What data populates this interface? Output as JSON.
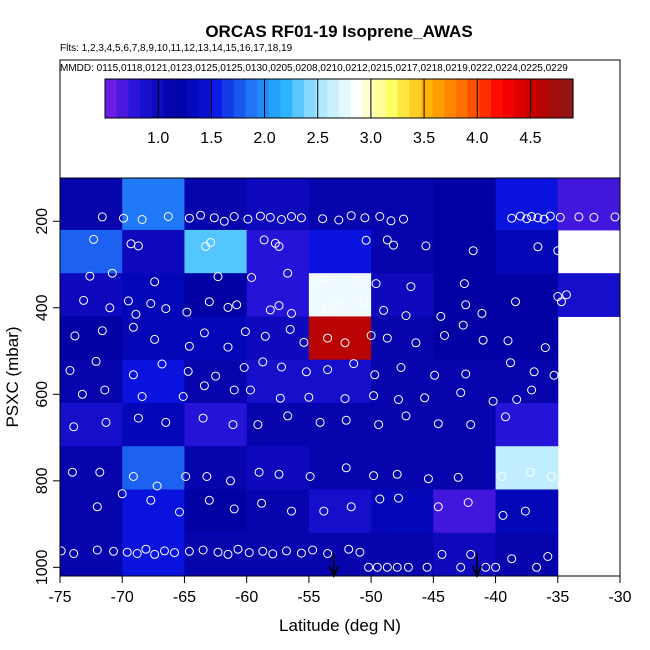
{
  "chart_data": {
    "type": "heatmap",
    "title": "ORCAS RF01-19 Isoprene_AWAS",
    "flights_line": "Flts: 1,2,3,4,5,6,7,8,9,10,11,12,13,14,15,16,17,18,19",
    "mmdd_line": "MMDD: 0115,0118,0121,0123,0125,0125,0130,0205,0208,0210,0212,0215,0217,0218,0219,0222,0224,0225,0229",
    "xlabel": "Latitude (deg N)",
    "ylabel": "PSXC (mbar)",
    "xlim": [
      -75,
      -30
    ],
    "ylim": [
      1000,
      100
    ],
    "x_ticks": [
      -75,
      -70,
      -65,
      -60,
      -55,
      -50,
      -45,
      -40,
      -35,
      -30
    ],
    "x_tick_labels": [
      "-75",
      "-70",
      "-65",
      "-60",
      "-55",
      "-50",
      "-45",
      "-40",
      "-35",
      "-30"
    ],
    "y_ticks": [
      200,
      400,
      600,
      800,
      1000
    ],
    "y_tick_labels": [
      "200",
      "400",
      "600",
      "800",
      "1000"
    ],
    "colorbar": {
      "range": [
        0.5,
        4.9
      ],
      "ticks": [
        1.0,
        1.5,
        2.0,
        2.5,
        3.0,
        3.5,
        4.0,
        4.5
      ],
      "tick_labels": [
        "1.0",
        "1.5",
        "2.0",
        "2.5",
        "3.0",
        "3.5",
        "4.0",
        "4.5"
      ],
      "colors": [
        "#7a1fe6",
        "#1a12d6",
        "#0000a0",
        "#0a14e0",
        "#1f70f5",
        "#28b4ff",
        "#b0eaff",
        "#ffffff",
        "#ffff60",
        "#ffb000",
        "#ff6a00",
        "#ff0000",
        "#c00000",
        "#8a1a1a"
      ]
    },
    "grid": {
      "x_edges": [
        -75,
        -70,
        -65,
        -60,
        -55,
        -50,
        -45,
        -40,
        -35,
        -30
      ],
      "y_edges": [
        100,
        220,
        320,
        420,
        520,
        620,
        720,
        820,
        920,
        1020
      ],
      "values": [
        [
          1.1,
          1.9,
          1.1,
          1.0,
          1.1,
          1.1,
          1.2,
          1.5,
          0.7
        ],
        [
          1.8,
          1.0,
          2.3,
          0.8,
          1.5,
          1.1,
          1.2,
          1.3,
          null
        ],
        [
          1.0,
          1.3,
          1.2,
          0.8,
          2.8,
          1.0,
          1.2,
          1.2,
          0.9
        ],
        [
          1.2,
          1.3,
          1.3,
          1.0,
          4.6,
          1.1,
          1.2,
          1.2,
          null
        ],
        [
          1.1,
          1.5,
          1.1,
          0.9,
          0.9,
          1.1,
          1.1,
          1.1,
          null
        ],
        [
          0.9,
          1.3,
          0.8,
          1.1,
          1.1,
          1.1,
          1.1,
          0.8,
          null
        ],
        [
          1.1,
          1.8,
          1.1,
          1.0,
          1.1,
          1.1,
          1.1,
          2.6,
          null
        ],
        [
          1.1,
          1.5,
          1.2,
          1.1,
          0.9,
          1.3,
          0.7,
          1.3,
          null
        ],
        [
          1.1,
          1.5,
          1.1,
          1.1,
          1.1,
          1.1,
          1.0,
          1.1,
          null
        ]
      ]
    },
    "points": [
      [
        -71.6,
        190
      ],
      [
        -69.9,
        193
      ],
      [
        -68.4,
        196
      ],
      [
        -66.3,
        189
      ],
      [
        -64.6,
        193
      ],
      [
        -63.7,
        186
      ],
      [
        -62.6,
        192
      ],
      [
        -61.8,
        200
      ],
      [
        -61.0,
        189
      ],
      [
        -59.9,
        195
      ],
      [
        -58.9,
        188
      ],
      [
        -58.1,
        191
      ],
      [
        -57.2,
        196
      ],
      [
        -56.4,
        189
      ],
      [
        -55.6,
        192
      ],
      [
        -53.9,
        194
      ],
      [
        -52.6,
        197
      ],
      [
        -51.6,
        187
      ],
      [
        -50.5,
        192
      ],
      [
        -49.3,
        189
      ],
      [
        -48.4,
        199
      ],
      [
        -47.4,
        195
      ],
      [
        -38.7,
        193
      ],
      [
        -38.0,
        188
      ],
      [
        -37.5,
        194
      ],
      [
        -37.1,
        189
      ],
      [
        -36.6,
        192
      ],
      [
        -36.1,
        195
      ],
      [
        -35.6,
        188
      ],
      [
        -34.8,
        191
      ],
      [
        -33.3,
        190
      ],
      [
        -32.1,
        191
      ],
      [
        -30.4,
        190
      ],
      [
        -72.3,
        242
      ],
      [
        -69.3,
        252
      ],
      [
        -68.7,
        257
      ],
      [
        -63.3,
        258
      ],
      [
        -62.9,
        249
      ],
      [
        -58.6,
        243
      ],
      [
        -57.7,
        251
      ],
      [
        -57.4,
        258
      ],
      [
        -50.4,
        244
      ],
      [
        -48.7,
        243
      ],
      [
        -48.2,
        255
      ],
      [
        -45.6,
        257
      ],
      [
        -41.8,
        268
      ],
      [
        -36.6,
        259
      ],
      [
        -35.0,
        268
      ],
      [
        -72.6,
        327
      ],
      [
        -70.8,
        320
      ],
      [
        -67.4,
        340
      ],
      [
        -62.3,
        328
      ],
      [
        -59.6,
        330
      ],
      [
        -56.7,
        320
      ],
      [
        -53.8,
        334
      ],
      [
        -51.1,
        338
      ],
      [
        -49.6,
        344
      ],
      [
        -46.8,
        351
      ],
      [
        -42.5,
        344
      ],
      [
        -35.0,
        374
      ],
      [
        -34.3,
        370
      ],
      [
        -73.1,
        383
      ],
      [
        -71.0,
        400
      ],
      [
        -69.5,
        384
      ],
      [
        -68.9,
        415
      ],
      [
        -67.7,
        390
      ],
      [
        -66.5,
        402
      ],
      [
        -64.8,
        410
      ],
      [
        -63.0,
        386
      ],
      [
        -61.5,
        399
      ],
      [
        -60.8,
        393
      ],
      [
        -58.1,
        405
      ],
      [
        -57.4,
        395
      ],
      [
        -56.4,
        413
      ],
      [
        -53.5,
        402
      ],
      [
        -52.6,
        393
      ],
      [
        -50.6,
        384
      ],
      [
        -49.0,
        406
      ],
      [
        -47.2,
        418
      ],
      [
        -44.4,
        420
      ],
      [
        -42.4,
        393
      ],
      [
        -41.1,
        413
      ],
      [
        -38.4,
        386
      ],
      [
        -34.7,
        386
      ],
      [
        -73.8,
        465
      ],
      [
        -71.6,
        453
      ],
      [
        -69.1,
        445
      ],
      [
        -67.4,
        473
      ],
      [
        -64.6,
        489
      ],
      [
        -63.4,
        458
      ],
      [
        -61.5,
        491
      ],
      [
        -60.1,
        455
      ],
      [
        -58.5,
        466
      ],
      [
        -56.5,
        450
      ],
      [
        -55.4,
        480
      ],
      [
        -53.5,
        470
      ],
      [
        -52.1,
        481
      ],
      [
        -50.0,
        464
      ],
      [
        -48.7,
        470
      ],
      [
        -46.4,
        481
      ],
      [
        -44.1,
        464
      ],
      [
        -42.6,
        440
      ],
      [
        -41.0,
        475
      ],
      [
        -39.0,
        476
      ],
      [
        -36.0,
        492
      ],
      [
        -74.2,
        545
      ],
      [
        -72.1,
        524
      ],
      [
        -69.1,
        555
      ],
      [
        -66.8,
        530
      ],
      [
        -64.7,
        547
      ],
      [
        -62.5,
        558
      ],
      [
        -60.2,
        538
      ],
      [
        -58.7,
        525
      ],
      [
        -57.2,
        537
      ],
      [
        -55.2,
        548
      ],
      [
        -53.5,
        543
      ],
      [
        -51.4,
        529
      ],
      [
        -49.7,
        555
      ],
      [
        -47.6,
        538
      ],
      [
        -44.9,
        556
      ],
      [
        -42.4,
        553
      ],
      [
        -38.8,
        527
      ],
      [
        -36.9,
        548
      ],
      [
        -35.3,
        556
      ],
      [
        -73.2,
        600
      ],
      [
        -71.4,
        590
      ],
      [
        -68.4,
        605
      ],
      [
        -65.1,
        605
      ],
      [
        -63.4,
        580
      ],
      [
        -61.0,
        590
      ],
      [
        -59.7,
        590
      ],
      [
        -57.3,
        609
      ],
      [
        -55.0,
        607
      ],
      [
        -52.1,
        610
      ],
      [
        -49.8,
        603
      ],
      [
        -47.8,
        612
      ],
      [
        -45.7,
        608
      ],
      [
        -42.8,
        596
      ],
      [
        -40.2,
        616
      ],
      [
        -38.3,
        612
      ],
      [
        -37.1,
        590
      ],
      [
        -73.9,
        675
      ],
      [
        -71.3,
        665
      ],
      [
        -68.7,
        655
      ],
      [
        -66.5,
        665
      ],
      [
        -63.5,
        655
      ],
      [
        -61.1,
        670
      ],
      [
        -59.1,
        670
      ],
      [
        -56.7,
        650
      ],
      [
        -54.1,
        665
      ],
      [
        -52.0,
        660
      ],
      [
        -49.4,
        670
      ],
      [
        -47.2,
        650
      ],
      [
        -44.6,
        668
      ],
      [
        -42.0,
        670
      ],
      [
        -39.2,
        652
      ],
      [
        -74.0,
        780
      ],
      [
        -71.8,
        780
      ],
      [
        -69.1,
        790
      ],
      [
        -67.2,
        812
      ],
      [
        -64.9,
        790
      ],
      [
        -63.2,
        790
      ],
      [
        -61.3,
        800
      ],
      [
        -59.0,
        780
      ],
      [
        -57.4,
        785
      ],
      [
        -54.9,
        790
      ],
      [
        -52.0,
        770
      ],
      [
        -49.8,
        788
      ],
      [
        -47.9,
        785
      ],
      [
        -45.4,
        795
      ],
      [
        -43.0,
        792
      ],
      [
        -39.5,
        790
      ],
      [
        -37.2,
        780
      ],
      [
        -35.5,
        790
      ],
      [
        -72.0,
        860
      ],
      [
        -70.0,
        830
      ],
      [
        -67.7,
        845
      ],
      [
        -65.4,
        872
      ],
      [
        -63.0,
        845
      ],
      [
        -61.0,
        865
      ],
      [
        -58.8,
        852
      ],
      [
        -56.4,
        870
      ],
      [
        -53.8,
        870
      ],
      [
        -51.6,
        860
      ],
      [
        -49.3,
        842
      ],
      [
        -47.8,
        840
      ],
      [
        -44.6,
        860
      ],
      [
        -42.2,
        850
      ],
      [
        -39.4,
        880
      ],
      [
        -37.6,
        870
      ],
      [
        -74.9,
        962
      ],
      [
        -73.9,
        968
      ],
      [
        -72.0,
        960
      ],
      [
        -70.7,
        963
      ],
      [
        -69.6,
        965
      ],
      [
        -68.8,
        968
      ],
      [
        -68.1,
        958
      ],
      [
        -67.4,
        970
      ],
      [
        -66.6,
        962
      ],
      [
        -65.8,
        966
      ],
      [
        -64.6,
        963
      ],
      [
        -63.5,
        960
      ],
      [
        -62.3,
        965
      ],
      [
        -61.5,
        970
      ],
      [
        -60.7,
        958
      ],
      [
        -59.8,
        966
      ],
      [
        -58.7,
        963
      ],
      [
        -57.9,
        969
      ],
      [
        -56.8,
        962
      ],
      [
        -55.6,
        967
      ],
      [
        -54.7,
        960
      ],
      [
        -53.5,
        968
      ],
      [
        -51.8,
        958
      ],
      [
        -50.9,
        965
      ],
      [
        -50.2,
        1000
      ],
      [
        -49.5,
        1000
      ],
      [
        -48.7,
        1000
      ],
      [
        -47.9,
        1000
      ],
      [
        -47.0,
        1000
      ],
      [
        -45.5,
        1000
      ],
      [
        -44.3,
        970
      ],
      [
        -42.8,
        1000
      ],
      [
        -42.0,
        970
      ],
      [
        -40.8,
        1000
      ],
      [
        -40.0,
        1000
      ],
      [
        -38.7,
        980
      ],
      [
        -36.7,
        1000
      ],
      [
        -35.8,
        975
      ]
    ],
    "arrows_lat": [
      -53,
      -41.5
    ]
  }
}
